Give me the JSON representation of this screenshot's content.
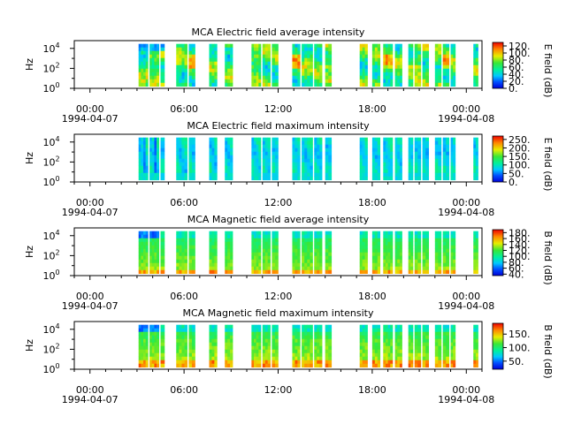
{
  "chart_data": [
    {
      "type": "heatmap",
      "title": "MCA  Electric field average intensity",
      "ylabel": "Hz",
      "y_tick_labels": [
        {
          "base": "10",
          "exp": "0"
        },
        {
          "base": "10",
          "exp": "2"
        },
        {
          "base": "10",
          "exp": "4"
        }
      ],
      "x_tick_labels": [
        "00:00",
        "06:00",
        "12:00",
        "18:00",
        "00:00"
      ],
      "x_dates": [
        "1994-04-07",
        "1994-04-08"
      ],
      "colorbar_label": "E field (dB)",
      "colorbar_ticks": [
        "120.",
        "100.",
        "80.",
        "60.",
        "40.",
        "20.",
        "0."
      ],
      "colorbar_range": [
        0,
        130
      ],
      "style": "avg-e"
    },
    {
      "type": "heatmap",
      "title": "MCA  Electric field maximum intensity",
      "ylabel": "Hz",
      "y_tick_labels": [
        {
          "base": "10",
          "exp": "0"
        },
        {
          "base": "10",
          "exp": "2"
        },
        {
          "base": "10",
          "exp": "4"
        }
      ],
      "x_tick_labels": [
        "00:00",
        "06:00",
        "12:00",
        "18:00",
        "00:00"
      ],
      "x_dates": [
        "1994-04-07",
        "1994-04-08"
      ],
      "colorbar_label": "E field (dB)",
      "colorbar_ticks": [
        "250.",
        "200.",
        "150.",
        "100.",
        "50.",
        "0."
      ],
      "colorbar_range": [
        0,
        270
      ],
      "style": "max-e"
    },
    {
      "type": "heatmap",
      "title": "MCA  Magnetic field average intensity",
      "ylabel": "Hz",
      "y_tick_labels": [
        {
          "base": "10",
          "exp": "0"
        },
        {
          "base": "10",
          "exp": "2"
        },
        {
          "base": "10",
          "exp": "4"
        }
      ],
      "x_tick_labels": [
        "00:00",
        "06:00",
        "12:00",
        "18:00",
        "00:00"
      ],
      "x_dates": [
        "1994-04-07",
        "1994-04-08"
      ],
      "colorbar_label": "B field (dB)",
      "colorbar_ticks": [
        "180.",
        "160.",
        "140.",
        "120.",
        "100.",
        "80.",
        "60.",
        "40."
      ],
      "colorbar_range": [
        35,
        190
      ],
      "style": "avg-b"
    },
    {
      "type": "heatmap",
      "title": "MCA  Magnetic field maximum intensity",
      "ylabel": "Hz",
      "y_tick_labels": [
        {
          "base": "10",
          "exp": "0"
        },
        {
          "base": "10",
          "exp": "2"
        },
        {
          "base": "10",
          "exp": "4"
        }
      ],
      "x_tick_labels": [
        "00:00",
        "06:00",
        "12:00",
        "18:00",
        "00:00"
      ],
      "x_dates": [
        "1994-04-07",
        "1994-04-08"
      ],
      "colorbar_label": "B field (dB)",
      "colorbar_ticks": [
        "150.",
        "100.",
        "50."
      ],
      "colorbar_range": [
        20,
        190
      ],
      "style": "max-b"
    }
  ],
  "data_segments_hours": [
    [
      3.1,
      3.7
    ],
    [
      3.8,
      4.4
    ],
    [
      4.5,
      4.75
    ],
    [
      5.5,
      6.2
    ],
    [
      6.3,
      6.7
    ],
    [
      7.6,
      8.1
    ],
    [
      8.6,
      9.1
    ],
    [
      10.3,
      10.9
    ],
    [
      11.0,
      11.5
    ],
    [
      11.6,
      12.0
    ],
    [
      12.9,
      13.4
    ],
    [
      13.5,
      14.2
    ],
    [
      14.3,
      14.8
    ],
    [
      15.0,
      15.4
    ],
    [
      17.2,
      17.7
    ],
    [
      18.0,
      18.5
    ],
    [
      18.7,
      19.3
    ],
    [
      19.45,
      19.9
    ],
    [
      20.3,
      20.6
    ],
    [
      20.7,
      21.1
    ],
    [
      21.2,
      21.6
    ],
    [
      22.0,
      22.4
    ],
    [
      22.5,
      22.9
    ],
    [
      23.0,
      23.3
    ],
    [
      24.45,
      24.75
    ]
  ]
}
